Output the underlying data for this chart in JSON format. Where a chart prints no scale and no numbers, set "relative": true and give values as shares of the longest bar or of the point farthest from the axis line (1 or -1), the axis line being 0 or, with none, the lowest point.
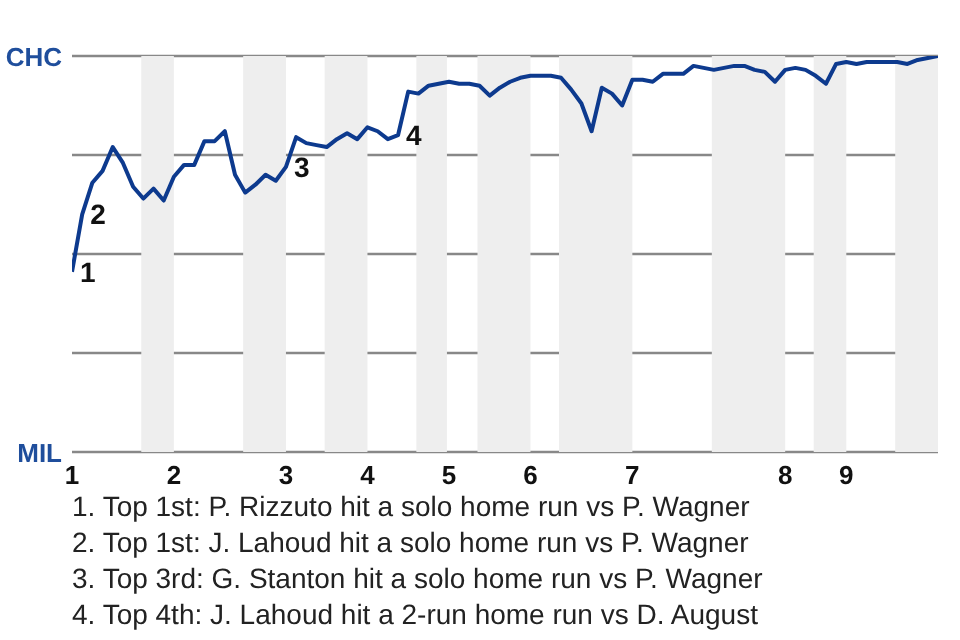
{
  "chart_data": {
    "type": "line",
    "marker": "none",
    "grid": "y",
    "legend": false,
    "relative": true,
    "categories": [
      "1",
      null,
      null,
      null,
      null,
      null,
      null,
      null,
      null,
      null,
      "2",
      null,
      null,
      null,
      null,
      null,
      null,
      null,
      null,
      null,
      null,
      "3",
      null,
      null,
      null,
      null,
      null,
      null,
      null,
      "4",
      null,
      null,
      null,
      null,
      null,
      null,
      null,
      "5",
      null,
      null,
      null,
      null,
      null,
      null,
      null,
      "6",
      null,
      null,
      null,
      null,
      null,
      null,
      null,
      null,
      null,
      "7",
      null,
      null,
      null,
      null,
      null,
      null,
      null,
      null,
      null,
      null,
      null,
      null,
      null,
      null,
      "8",
      null,
      null,
      null,
      null,
      null,
      "9",
      null,
      null,
      null,
      null,
      null,
      null,
      null,
      null,
      null
    ],
    "series": [
      {
        "color": "#0d3a8e",
        "values": [
          0.455,
          0.6,
          0.68,
          0.71,
          0.77,
          0.73,
          0.67,
          0.64,
          0.665,
          0.635,
          0.695,
          0.725,
          0.725,
          0.785,
          0.785,
          0.81,
          0.7,
          0.655,
          0.675,
          0.7,
          0.685,
          0.72,
          0.795,
          0.78,
          0.775,
          0.77,
          0.79,
          0.805,
          0.79,
          0.82,
          0.81,
          0.79,
          0.8,
          0.91,
          0.905,
          0.925,
          0.93,
          0.935,
          0.93,
          0.93,
          0.925,
          0.9,
          0.92,
          0.935,
          0.945,
          0.95,
          0.95,
          0.95,
          0.945,
          0.915,
          0.88,
          0.81,
          0.92,
          0.905,
          0.875,
          0.94,
          0.94,
          0.935,
          0.955,
          0.955,
          0.955,
          0.975,
          0.97,
          0.965,
          0.97,
          0.975,
          0.975,
          0.965,
          0.96,
          0.935,
          0.965,
          0.97,
          0.965,
          0.95,
          0.93,
          0.98,
          0.985,
          0.98,
          0.985,
          0.985,
          0.985,
          0.985,
          0.98,
          0.99,
          0.995,
          1
        ]
      }
    ],
    "annotations": [
      "CHC",
      "MIL",
      "1",
      "2",
      "3",
      "4",
      "1. Top 1st: P. Rizzuto hit a solo home run vs P. Wagner",
      "2. Top 1st: J. Lahoud hit a solo home run vs P. Wagner",
      "3. Top 3rd: G. Stanton hit a solo home run vs P. Wagner",
      "4. Top 4th: J. Lahoud hit a 2-run home run vs D. August"
    ]
  }
}
